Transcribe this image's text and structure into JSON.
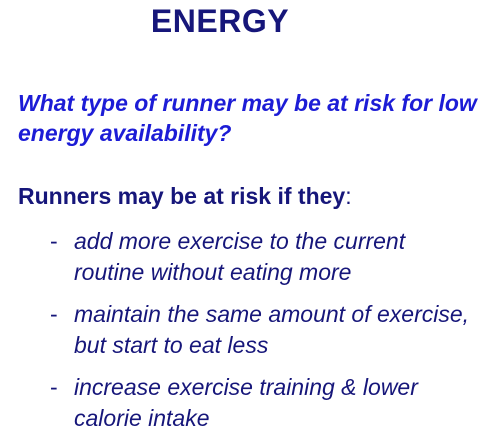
{
  "title": "ENERGY",
  "question": "What type of runner may be at risk for low energy availability?",
  "lead": {
    "strong": "Runners may be at risk if they",
    "suffix": ":"
  },
  "bullets": {
    "marker": "-",
    "items": [
      "add more exercise to the current routine without eating more",
      "maintain the same amount of exercise, but start to eat less",
      "increase exercise training & lower calorie intake"
    ]
  },
  "colors": {
    "title": "#16167a",
    "question": "#1c1cd6",
    "body": "#16167a"
  }
}
